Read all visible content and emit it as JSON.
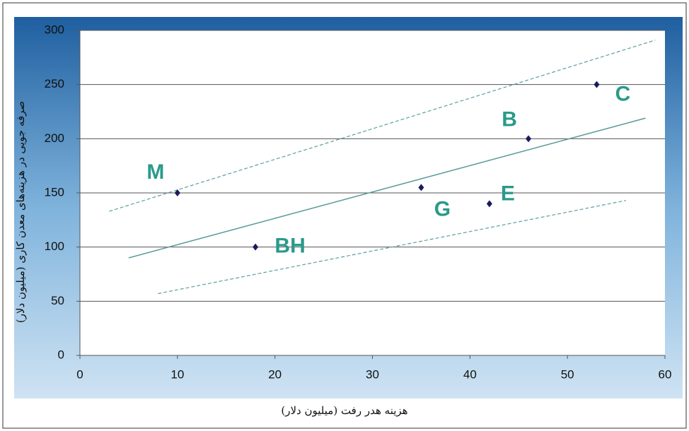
{
  "chart_data": {
    "type": "scatter",
    "x_label": "هزینه هدر رفت (میلیون دلار)",
    "y_label": "صرفه جویی در هزینه‌های معدن کاری (میلیون دلار)",
    "points": {
      "labels": [
        "M",
        "BH",
        "G",
        "E",
        "B",
        "C"
      ],
      "x": [
        10,
        18,
        35,
        42,
        46,
        53
      ],
      "y": [
        150,
        100,
        155,
        140,
        200,
        250
      ],
      "color": "#1a1a5e"
    },
    "lines": [
      {
        "x": [
          5,
          58
        ],
        "y": [
          90,
          219
        ],
        "dashed": false
      },
      {
        "x": [
          3,
          59
        ],
        "y": [
          133,
          291
        ],
        "dashed": true
      },
      {
        "x": [
          8,
          56
        ],
        "y": [
          57,
          143
        ],
        "dashed": true
      }
    ],
    "line_color": "#5f9e9e",
    "label_color": "#2a9a8a",
    "xlim": [
      0,
      60
    ],
    "ylim": [
      0,
      300
    ],
    "xticks": [
      0,
      10,
      20,
      30,
      40,
      50,
      60
    ],
    "yticks": [
      0,
      50,
      100,
      150,
      200,
      250,
      300
    ],
    "grid": true
  }
}
